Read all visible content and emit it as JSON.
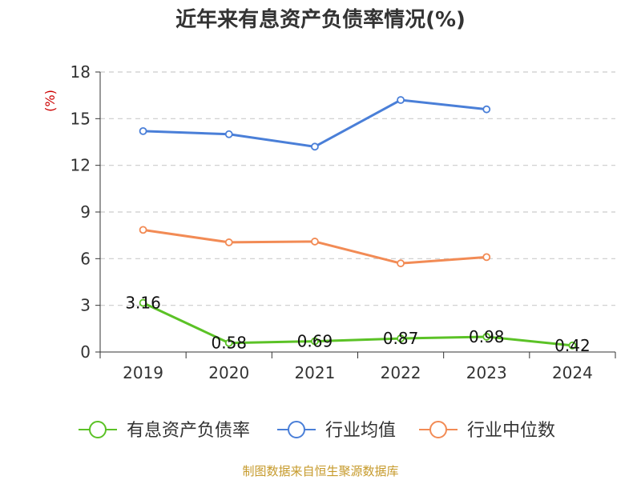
{
  "chart_data": {
    "type": "line",
    "title": "近年来有息资产负债率情况(%)",
    "ylabel": "(%)",
    "categories": [
      "2019",
      "2020",
      "2021",
      "2022",
      "2023",
      "2024"
    ],
    "ylim": [
      0,
      18
    ],
    "yticks": [
      "0",
      "3",
      "6",
      "9",
      "12",
      "15",
      "18"
    ],
    "grid": true,
    "legend_position": "bottom",
    "series": [
      {
        "name": "有息资产负债率",
        "values": [
          3.16,
          0.58,
          0.69,
          0.87,
          0.98,
          0.42
        ],
        "labels": [
          "3.16",
          "0.58",
          "0.69",
          "0.87",
          "0.98",
          "0.42"
        ],
        "color": "#5bc226"
      },
      {
        "name": "行业均值",
        "values": [
          14.2,
          14.0,
          13.2,
          16.2,
          15.6,
          null
        ],
        "color": "#4a7fd8"
      },
      {
        "name": "行业中位数",
        "values": [
          7.85,
          7.05,
          7.1,
          5.7,
          6.1,
          null
        ],
        "color": "#f28b55"
      }
    ]
  },
  "colors": {
    "ylabel": "#cc0000",
    "source": "#c69a2b",
    "grid": "#cccccc",
    "axis": "#333333"
  },
  "source_text": "制图数据来自恒生聚源数据库"
}
